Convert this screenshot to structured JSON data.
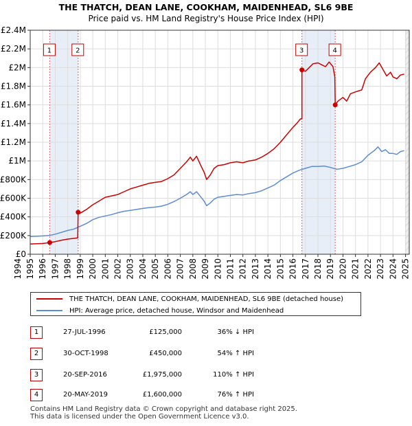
{
  "chart_data": {
    "type": "line",
    "title": "THE THATCH, DEAN LANE, COOKHAM, MAIDENHEAD, SL6 9BE",
    "subtitle": "Price paid vs. HM Land Registry's House Price Index (HPI)",
    "xlim": [
      1995.0,
      2025.3
    ],
    "ylim": [
      0,
      2400000
    ],
    "x_ticks": [
      1994,
      1995,
      1996,
      1997,
      1998,
      1999,
      2000,
      2001,
      2002,
      2003,
      2004,
      2005,
      2006,
      2007,
      2008,
      2009,
      2010,
      2011,
      2012,
      2013,
      2014,
      2015,
      2016,
      2017,
      2018,
      2019,
      2020,
      2021,
      2022,
      2023,
      2024,
      2025
    ],
    "y_ticks": [
      {
        "value": 0,
        "label": "£0"
      },
      {
        "value": 200000,
        "label": "£200K"
      },
      {
        "value": 400000,
        "label": "£400K"
      },
      {
        "value": 600000,
        "label": "£600K"
      },
      {
        "value": 800000,
        "label": "£800K"
      },
      {
        "value": 1000000,
        "label": "£1M"
      },
      {
        "value": 1200000,
        "label": "£1.2M"
      },
      {
        "value": 1400000,
        "label": "£1.4M"
      },
      {
        "value": 1600000,
        "label": "£1.6M"
      },
      {
        "value": 1800000,
        "label": "£1.8M"
      },
      {
        "value": 2000000,
        "label": "£2M"
      },
      {
        "value": 2200000,
        "label": "£2.2M"
      },
      {
        "value": 2400000,
        "label": "£2.4M"
      }
    ],
    "future_shade_from": 2025.0,
    "series": [
      {
        "name": "THE THATCH, DEAN LANE, COOKHAM, MAIDENHEAD, SL6 9BE (detached house)",
        "color": "#cc0000",
        "points": [
          [
            1995.0,
            110000
          ],
          [
            1995.5,
            112000
          ],
          [
            1996.0,
            115000
          ],
          [
            1996.56,
            125000
          ],
          [
            1997.0,
            135000
          ],
          [
            1997.5,
            150000
          ],
          [
            1998.0,
            162000
          ],
          [
            1998.5,
            170000
          ],
          [
            1998.8,
            175000
          ],
          [
            1998.83,
            450000
          ],
          [
            1999.0,
            440000
          ],
          [
            1999.5,
            480000
          ],
          [
            2000.0,
            530000
          ],
          [
            2000.5,
            570000
          ],
          [
            2001.0,
            610000
          ],
          [
            2001.5,
            625000
          ],
          [
            2002.0,
            640000
          ],
          [
            2002.5,
            670000
          ],
          [
            2003.0,
            700000
          ],
          [
            2003.5,
            720000
          ],
          [
            2004.0,
            740000
          ],
          [
            2004.5,
            760000
          ],
          [
            2005.0,
            770000
          ],
          [
            2005.5,
            780000
          ],
          [
            2006.0,
            810000
          ],
          [
            2006.5,
            850000
          ],
          [
            2007.0,
            920000
          ],
          [
            2007.5,
            990000
          ],
          [
            2007.8,
            1040000
          ],
          [
            2008.0,
            1000000
          ],
          [
            2008.3,
            1050000
          ],
          [
            2008.6,
            960000
          ],
          [
            2008.9,
            880000
          ],
          [
            2009.1,
            800000
          ],
          [
            2009.4,
            850000
          ],
          [
            2009.7,
            920000
          ],
          [
            2010.0,
            950000
          ],
          [
            2010.5,
            960000
          ],
          [
            2011.0,
            980000
          ],
          [
            2011.5,
            990000
          ],
          [
            2012.0,
            980000
          ],
          [
            2012.5,
            1000000
          ],
          [
            2013.0,
            1010000
          ],
          [
            2013.5,
            1040000
          ],
          [
            2014.0,
            1080000
          ],
          [
            2014.5,
            1130000
          ],
          [
            2015.0,
            1200000
          ],
          [
            2015.5,
            1280000
          ],
          [
            2016.0,
            1360000
          ],
          [
            2016.3,
            1400000
          ],
          [
            2016.6,
            1450000
          ],
          [
            2016.72,
            1450000
          ],
          [
            2016.72,
            1975000
          ],
          [
            2017.0,
            1960000
          ],
          [
            2017.3,
            2000000
          ],
          [
            2017.6,
            2040000
          ],
          [
            2018.0,
            2050000
          ],
          [
            2018.3,
            2030000
          ],
          [
            2018.6,
            2010000
          ],
          [
            2018.9,
            2060000
          ],
          [
            2019.2,
            2010000
          ],
          [
            2019.35,
            1900000
          ],
          [
            2019.38,
            1600000
          ],
          [
            2019.6,
            1640000
          ],
          [
            2020.0,
            1680000
          ],
          [
            2020.3,
            1640000
          ],
          [
            2020.6,
            1720000
          ],
          [
            2021.0,
            1740000
          ],
          [
            2021.5,
            1760000
          ],
          [
            2021.8,
            1880000
          ],
          [
            2022.2,
            1950000
          ],
          [
            2022.6,
            2000000
          ],
          [
            2022.9,
            2050000
          ],
          [
            2023.2,
            1980000
          ],
          [
            2023.5,
            1910000
          ],
          [
            2023.8,
            1950000
          ],
          [
            2024.0,
            1900000
          ],
          [
            2024.3,
            1880000
          ],
          [
            2024.6,
            1920000
          ],
          [
            2024.9,
            1930000
          ]
        ]
      },
      {
        "name": "HPI: Average price, detached house, Windsor and Maidenhead",
        "color": "#5b8cd6",
        "points": [
          [
            1995.0,
            190000
          ],
          [
            1995.5,
            192000
          ],
          [
            1996.0,
            196000
          ],
          [
            1996.5,
            200000
          ],
          [
            1997.0,
            215000
          ],
          [
            1997.5,
            235000
          ],
          [
            1998.0,
            255000
          ],
          [
            1998.5,
            270000
          ],
          [
            1999.0,
            300000
          ],
          [
            1999.5,
            330000
          ],
          [
            2000.0,
            370000
          ],
          [
            2000.5,
            395000
          ],
          [
            2001.0,
            410000
          ],
          [
            2001.5,
            425000
          ],
          [
            2002.0,
            445000
          ],
          [
            2002.5,
            460000
          ],
          [
            2003.0,
            470000
          ],
          [
            2003.5,
            480000
          ],
          [
            2004.0,
            490000
          ],
          [
            2004.5,
            500000
          ],
          [
            2005.0,
            505000
          ],
          [
            2005.5,
            515000
          ],
          [
            2006.0,
            535000
          ],
          [
            2006.5,
            565000
          ],
          [
            2007.0,
            600000
          ],
          [
            2007.5,
            640000
          ],
          [
            2007.8,
            670000
          ],
          [
            2008.0,
            640000
          ],
          [
            2008.3,
            670000
          ],
          [
            2008.6,
            620000
          ],
          [
            2008.9,
            570000
          ],
          [
            2009.1,
            520000
          ],
          [
            2009.4,
            550000
          ],
          [
            2009.7,
            590000
          ],
          [
            2010.0,
            610000
          ],
          [
            2010.5,
            620000
          ],
          [
            2011.0,
            630000
          ],
          [
            2011.5,
            640000
          ],
          [
            2012.0,
            635000
          ],
          [
            2012.5,
            650000
          ],
          [
            2013.0,
            660000
          ],
          [
            2013.5,
            680000
          ],
          [
            2014.0,
            710000
          ],
          [
            2014.5,
            740000
          ],
          [
            2015.0,
            790000
          ],
          [
            2015.5,
            830000
          ],
          [
            2016.0,
            870000
          ],
          [
            2016.5,
            900000
          ],
          [
            2017.0,
            920000
          ],
          [
            2017.5,
            940000
          ],
          [
            2018.0,
            940000
          ],
          [
            2018.5,
            945000
          ],
          [
            2019.0,
            930000
          ],
          [
            2019.5,
            910000
          ],
          [
            2020.0,
            920000
          ],
          [
            2020.5,
            940000
          ],
          [
            2021.0,
            960000
          ],
          [
            2021.5,
            990000
          ],
          [
            2022.0,
            1060000
          ],
          [
            2022.5,
            1110000
          ],
          [
            2022.8,
            1150000
          ],
          [
            2023.1,
            1100000
          ],
          [
            2023.4,
            1120000
          ],
          [
            2023.7,
            1080000
          ],
          [
            2024.0,
            1080000
          ],
          [
            2024.3,
            1070000
          ],
          [
            2024.6,
            1100000
          ],
          [
            2024.9,
            1110000
          ]
        ]
      }
    ],
    "sales": [
      {
        "n": "1",
        "x": 1996.56,
        "y": 125000
      },
      {
        "n": "2",
        "x": 1998.83,
        "y": 450000
      },
      {
        "n": "3",
        "x": 2016.72,
        "y": 1975000
      },
      {
        "n": "4",
        "x": 2019.38,
        "y": 1600000
      }
    ]
  },
  "legend": {
    "property": "THE THATCH, DEAN LANE, COOKHAM, MAIDENHEAD, SL6 9BE (detached house)",
    "hpi": "HPI: Average price, detached house, Windsor and Maidenhead",
    "property_color": "#cc0000",
    "hpi_color": "#5b8cd6"
  },
  "transactions": [
    {
      "n": "1",
      "date": "27-JUL-1996",
      "price": "£125,000",
      "hpi": "36% ↓ HPI"
    },
    {
      "n": "2",
      "date": "30-OCT-1998",
      "price": "£450,000",
      "hpi": "54% ↑ HPI"
    },
    {
      "n": "3",
      "date": "20-SEP-2016",
      "price": "£1,975,000",
      "hpi": "110% ↑ HPI"
    },
    {
      "n": "4",
      "date": "20-MAY-2019",
      "price": "£1,600,000",
      "hpi": "76% ↑ HPI"
    }
  ],
  "footer": {
    "line1": "Contains HM Land Registry data © Crown copyright and database right 2025.",
    "line2": "This data is licensed under the Open Government Licence v3.0."
  }
}
